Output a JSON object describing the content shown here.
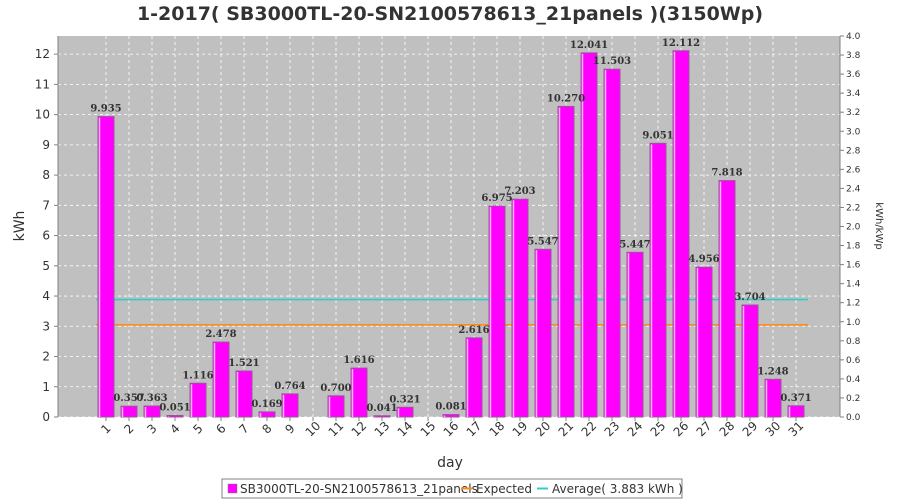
{
  "chart_data": {
    "type": "bar",
    "title": "1-2017( SB3000TL-20-SN2100578613_21panels )(3150Wp)",
    "xlabel": "day",
    "ylabel": "kWh",
    "ylabel_right": "kWh/kWp",
    "ylim": [
      0,
      12.6
    ],
    "ylim_right": [
      0,
      4.0
    ],
    "yticks": [
      "0",
      "1",
      "2",
      "3",
      "4",
      "5",
      "6",
      "7",
      "8",
      "9",
      "10",
      "11",
      "12"
    ],
    "yticks_right": [
      "0.0",
      "0.2",
      "0.4",
      "0.6",
      "0.8",
      "1.0",
      "1.2",
      "1.4",
      "1.6",
      "1.8",
      "2.0",
      "2.2",
      "2.4",
      "2.6",
      "2.8",
      "3.0",
      "3.2",
      "3.4",
      "3.6",
      "3.8",
      "4.0"
    ],
    "categories": [
      "1",
      "2",
      "3",
      "4",
      "5",
      "6",
      "7",
      "8",
      "9",
      "10",
      "11",
      "12",
      "13",
      "14",
      "15",
      "16",
      "17",
      "18",
      "19",
      "20",
      "21",
      "22",
      "23",
      "24",
      "25",
      "26",
      "27",
      "28",
      "29",
      "30",
      "31"
    ],
    "series": [
      {
        "name": "SB3000TL-20-SN2100578613_21panels",
        "color": "#ff00ff",
        "values": [
          9.935,
          0.357,
          0.363,
          0.051,
          1.116,
          2.478,
          1.521,
          0.169,
          0.764,
          0,
          0.7,
          1.616,
          0.041,
          0.321,
          0,
          0.081,
          2.616,
          6.975,
          7.203,
          5.547,
          10.27,
          12.041,
          11.503,
          5.447,
          9.051,
          12.112,
          4.956,
          7.818,
          3.704,
          1.248,
          0.371
        ],
        "labels": [
          "9.935",
          "0.357",
          "0.363",
          "0.051",
          "1.116",
          "2.478",
          "1.521",
          "0.169",
          "0.764",
          "",
          "0.700",
          "1.616",
          "0.041",
          "0.321",
          "",
          "0.081",
          "2.616",
          "6.975",
          "7.203",
          "5.547",
          "10.270",
          "12.041",
          "11.503",
          "5.447",
          "9.051",
          "12.112",
          "4.956",
          "7.818",
          "3.704",
          "1.248",
          "0.371"
        ]
      }
    ],
    "lines": [
      {
        "name": "Expected",
        "value": 3.05,
        "color": "#ff8c1a"
      },
      {
        "name": "Average( 3.883 kWh )",
        "value": 3.883,
        "color": "#33cccc"
      }
    ],
    "grid": true,
    "legend_position": "bottom"
  }
}
